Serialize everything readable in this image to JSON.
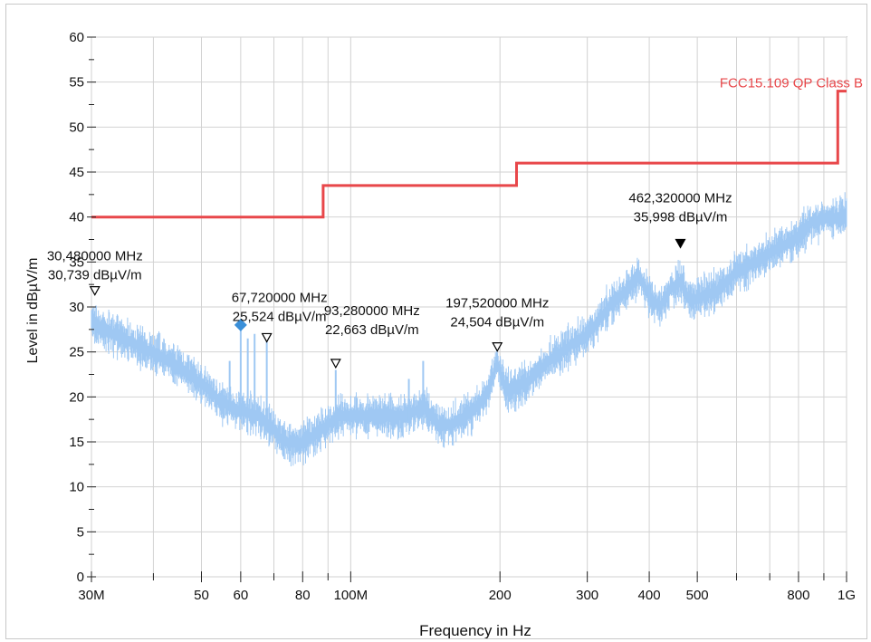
{
  "chart_data": {
    "type": "line",
    "title": "",
    "xlabel": "Frequency in Hz",
    "ylabel": "Level in dBµV/m",
    "x_scale": "log",
    "xlim": [
      30000000,
      1000000000
    ],
    "ylim": [
      0,
      60
    ],
    "grid": true,
    "yticks": [
      0,
      5,
      10,
      15,
      20,
      25,
      30,
      35,
      40,
      45,
      50,
      55,
      60
    ],
    "xticks": [
      {
        "value": 30000000,
        "label": "30M"
      },
      {
        "value": 50000000,
        "label": "50"
      },
      {
        "value": 60000000,
        "label": "60"
      },
      {
        "value": 80000000,
        "label": "80"
      },
      {
        "value": 100000000,
        "label": "100M"
      },
      {
        "value": 200000000,
        "label": "200"
      },
      {
        "value": 300000000,
        "label": "300"
      },
      {
        "value": 400000000,
        "label": "400"
      },
      {
        "value": 500000000,
        "label": "500"
      },
      {
        "value": 800000000,
        "label": "800"
      },
      {
        "value": 1000000000,
        "label": "1G"
      }
    ],
    "minor_xticks": [
      40000000,
      70000000,
      90000000,
      600000000,
      700000000,
      900000000
    ],
    "series": [
      {
        "name": "FCC15.109 QP Class B",
        "kind": "limit",
        "color": "#e8474a",
        "x": [
          30000000,
          88000000,
          88000000,
          216000000,
          216000000,
          960000000,
          960000000,
          1000000000
        ],
        "y": [
          40,
          40,
          43.5,
          43.5,
          46,
          46,
          54,
          54
        ]
      },
      {
        "kind": "measurement",
        "color": "#9fc8f3",
        "x": [
          30000000,
          32000000,
          35000000,
          40000000,
          45000000,
          50000000,
          55000000,
          60000000,
          65000000,
          70000000,
          72000000,
          75000000,
          80000000,
          85000000,
          90000000,
          95000000,
          100000000,
          110000000,
          120000000,
          130000000,
          140000000,
          150000000,
          160000000,
          170000000,
          180000000,
          190000000,
          197520000,
          205000000,
          215000000,
          230000000,
          250000000,
          280000000,
          300000000,
          330000000,
          360000000,
          380000000,
          400000000,
          420000000,
          440000000,
          462320000,
          480000000,
          500000000,
          550000000,
          600000000,
          650000000,
          700000000,
          750000000,
          800000000,
          850000000,
          900000000,
          950000000,
          1000000000
        ],
        "y": [
          28.5,
          27.5,
          26.5,
          25,
          23.5,
          21.5,
          19.5,
          18.5,
          18,
          16.5,
          15.5,
          15,
          15,
          16,
          17,
          18,
          18,
          18,
          18,
          18,
          19,
          17,
          17,
          18,
          19,
          21,
          24,
          21,
          21,
          22,
          24,
          26,
          27,
          30,
          32,
          33.5,
          31.5,
          30,
          32,
          33,
          31,
          31,
          32,
          34,
          35,
          36,
          37,
          38,
          39.5,
          40,
          40,
          40.5
        ]
      },
      {
        "kind": "spikes",
        "color": "#9fc8f3",
        "x": [
          57000000,
          60000000,
          62000000,
          64000000,
          67720000,
          93280000,
          131000000,
          140000000
        ],
        "y": [
          24,
          28,
          26.5,
          27,
          26.5,
          23,
          22,
          24
        ]
      }
    ],
    "markers": [
      {
        "label": "30,480000 MHz",
        "value": "30,739 dBµV/m",
        "x": 30480000,
        "y": 30.739,
        "symbol": "open-triangle"
      },
      {
        "label": "67,720000 MHz",
        "value": "25,524 dBµV/m",
        "x": 67720000,
        "y": 25.524,
        "symbol": "open-triangle"
      },
      {
        "label": "93,280000 MHz",
        "value": "22,663 dBµV/m",
        "x": 93280000,
        "y": 22.663,
        "symbol": "open-triangle"
      },
      {
        "label": "197,520000 MHz",
        "value": "24,504 dBµV/m",
        "x": 197520000,
        "y": 24.504,
        "symbol": "open-triangle"
      },
      {
        "label": "462,320000 MHz",
        "value": "35,998 dBµV/m",
        "x": 462320000,
        "y": 35.998,
        "symbol": "filled-triangle"
      }
    ],
    "diamond_marker": {
      "x": 60000000,
      "y": 28,
      "color": "#3a8fd8"
    },
    "annotations": [
      {
        "text": "FCC15.109 QP Class B",
        "color": "#e8474a",
        "anchor": "end",
        "x": 1000000000,
        "y": 55
      }
    ]
  }
}
